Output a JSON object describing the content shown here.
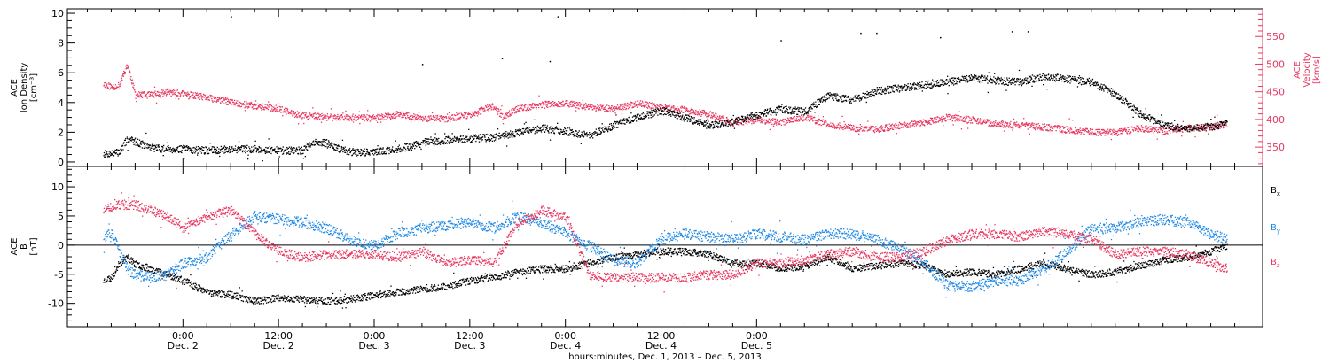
{
  "chart_data": [
    {
      "type": "scatter",
      "panel": "top",
      "ylabel_left": [
        "ACE",
        "Ion Density",
        "[cm⁻³]"
      ],
      "ylabel_right": [
        "ACE",
        "Velocity",
        "[km/s]"
      ],
      "ylim_left": [
        -0.3,
        10.3
      ],
      "yticks_left": [
        0,
        2,
        4,
        6,
        8,
        10
      ],
      "ylim_right": [
        315,
        600
      ],
      "yticks_right": [
        350,
        400,
        450,
        500,
        550
      ],
      "series": [
        {
          "name": "Ion Density",
          "axis": "left",
          "color": "#000000",
          "x": [
            -10,
            -9,
            -8,
            -7,
            -6,
            -4,
            -2,
            0,
            3,
            6,
            9,
            12,
            15,
            16,
            17,
            18,
            19,
            21,
            24,
            27,
            30,
            33,
            36,
            39,
            42,
            45,
            48,
            51,
            54,
            57,
            60,
            63,
            66,
            69,
            72,
            75,
            78,
            81,
            84,
            87,
            90,
            93,
            96,
            99,
            102,
            105,
            108,
            111,
            114,
            117,
            120,
            123,
            126,
            129,
            131
          ],
          "y": [
            0.6,
            0.6,
            0.7,
            1.6,
            1.4,
            1.0,
            0.9,
            0.9,
            0.8,
            0.9,
            0.9,
            0.8,
            0.8,
            1.2,
            1.4,
            1.3,
            1.0,
            0.7,
            0.7,
            0.9,
            1.3,
            1.5,
            1.6,
            1.7,
            2.0,
            2.3,
            2.1,
            1.8,
            2.5,
            3.0,
            3.5,
            3.0,
            2.5,
            2.7,
            3.2,
            3.6,
            3.4,
            4.5,
            4.2,
            4.8,
            5.0,
            5.2,
            5.4,
            5.7,
            5.5,
            5.4,
            5.8,
            5.6,
            5.4,
            4.6,
            3.3,
            2.5,
            2.3,
            2.4,
            2.6
          ],
          "outliers_x": [
            6,
            30,
            40,
            46,
            47,
            75,
            85,
            87,
            92,
            95,
            104,
            106
          ],
          "outliers_y": [
            9.8,
            6.6,
            7.0,
            6.8,
            9.8,
            8.2,
            8.7,
            8.7,
            10.2,
            8.4,
            8.8,
            8.8
          ]
        },
        {
          "name": "Velocity",
          "axis": "right",
          "color": "#e8375f",
          "x": [
            -10,
            -9,
            -8,
            -7.5,
            -7,
            -6,
            -4,
            -2,
            0,
            3,
            6,
            9,
            12,
            14,
            15,
            18,
            21,
            24,
            27,
            30,
            33,
            36,
            38,
            39,
            40,
            42,
            45,
            48,
            51,
            54,
            57,
            60,
            63,
            66,
            69,
            72,
            75,
            78,
            81,
            84,
            87,
            90,
            93,
            96,
            99,
            102,
            105,
            108,
            111,
            114,
            117,
            120,
            123,
            126,
            129,
            131
          ],
          "y": [
            465,
            460,
            462,
            485,
            500,
            445,
            445,
            450,
            447,
            440,
            432,
            425,
            420,
            410,
            408,
            405,
            405,
            403,
            410,
            403,
            402,
            410,
            420,
            425,
            405,
            420,
            428,
            430,
            423,
            420,
            430,
            422,
            418,
            410,
            395,
            400,
            395,
            405,
            392,
            385,
            383,
            390,
            395,
            405,
            400,
            393,
            390,
            387,
            382,
            378,
            377,
            385,
            380,
            385,
            388,
            392
          ]
        }
      ]
    },
    {
      "type": "scatter",
      "panel": "bottom",
      "ylabel_left": [
        "ACE",
        "B",
        "[nT]"
      ],
      "ylim": [
        -14,
        13.5
      ],
      "yticks": [
        -10,
        -5,
        0,
        5,
        10
      ],
      "zero_line": true,
      "legend_placement": "right",
      "series": [
        {
          "name": "B_x",
          "label_main": "B",
          "label_sub": "x",
          "color": "#000000",
          "x": [
            -10,
            -9,
            -8,
            -7,
            -6,
            -4,
            -2,
            0,
            3,
            6,
            9,
            12,
            15,
            18,
            21,
            24,
            27,
            30,
            33,
            36,
            39,
            42,
            45,
            48,
            51,
            54,
            57,
            60,
            63,
            66,
            69,
            72,
            75,
            78,
            81,
            84,
            87,
            90,
            93,
            96,
            99,
            102,
            105,
            108,
            111,
            114,
            117,
            120,
            123,
            126,
            129,
            131
          ],
          "y": [
            -6,
            -5.5,
            -3,
            -2,
            -3.2,
            -4,
            -5,
            -6,
            -8,
            -8.5,
            -9.5,
            -9,
            -9.2,
            -9.5,
            -9.2,
            -8.5,
            -8,
            -7.5,
            -7,
            -6,
            -5.5,
            -4.5,
            -4,
            -4,
            -3,
            -2,
            -1.5,
            -1,
            -1,
            -1.5,
            -3,
            -3,
            -4,
            -3.5,
            -2,
            -4,
            -3.5,
            -3,
            -3.5,
            -5,
            -4.5,
            -5,
            -4,
            -3,
            -4,
            -5,
            -4.5,
            -3.5,
            -2.5,
            -2,
            -1,
            0
          ]
        },
        {
          "name": "B_y",
          "label_main": "B",
          "label_sub": "y",
          "color": "#1e88e5",
          "x": [
            -10,
            -9,
            -8,
            -7,
            -6,
            -4,
            -2,
            0,
            3,
            6,
            9,
            12,
            15,
            18,
            21,
            24,
            27,
            30,
            33,
            36,
            39,
            42,
            45,
            48,
            51,
            54,
            57,
            60,
            63,
            66,
            69,
            72,
            75,
            78,
            81,
            84,
            87,
            90,
            93,
            96,
            99,
            102,
            105,
            108,
            111,
            114,
            117,
            120,
            123,
            126,
            129,
            131
          ],
          "y": [
            1.5,
            2,
            -1,
            -4,
            -5,
            -5.5,
            -5,
            -3,
            -2,
            2,
            5,
            4.5,
            4,
            3,
            1,
            0,
            2,
            3,
            3.5,
            4,
            3,
            5,
            4,
            2,
            0,
            -2.5,
            -3,
            1,
            2,
            1.5,
            1,
            2,
            1.5,
            1,
            2,
            2,
            1,
            -0.5,
            -3,
            -7,
            -7,
            -6,
            -6,
            -4,
            -1,
            3,
            3,
            4,
            4.5,
            4,
            2,
            1
          ]
        },
        {
          "name": "B_z",
          "label_main": "B",
          "label_sub": "z",
          "color": "#e8375f",
          "x": [
            -10,
            -9,
            -8,
            -7,
            -6,
            -4,
            -2,
            0,
            3,
            6,
            9,
            12,
            15,
            18,
            21,
            24,
            27,
            30,
            33,
            36,
            39,
            42,
            45,
            48,
            51,
            54,
            57,
            60,
            63,
            66,
            69,
            72,
            75,
            78,
            81,
            84,
            87,
            90,
            93,
            96,
            99,
            102,
            105,
            108,
            111,
            114,
            117,
            120,
            123,
            126,
            129,
            131
          ],
          "y": [
            6,
            6.5,
            7,
            7,
            7,
            6,
            5,
            3,
            5,
            6,
            2,
            -1,
            -2,
            -1.5,
            -1.5,
            -1.5,
            -2,
            -1,
            -3,
            -2.5,
            -3,
            4,
            6,
            5,
            -5,
            -5.5,
            -5.5,
            -5.5,
            -5.5,
            -5,
            -5,
            -3,
            -3,
            -2.5,
            -1.5,
            -1,
            -2,
            -2,
            -1,
            1,
            2,
            2,
            1.5,
            2.5,
            2,
            1,
            -1.5,
            -1,
            -1,
            -1.5,
            -3,
            -4
          ]
        }
      ]
    }
  ],
  "x_axis": {
    "xlim_hours": [
      -14.5,
      135.5
    ],
    "ticks": [
      {
        "time": "0:00",
        "day": "Dec. 2"
      },
      {
        "time": "12:00",
        "day": "Dec. 2"
      },
      {
        "time": "0:00",
        "day": "Dec. 3"
      },
      {
        "time": "12:00",
        "day": "Dec. 3"
      },
      {
        "time": "0:00",
        "day": "Dec. 4"
      },
      {
        "time": "12:00",
        "day": "Dec. 4"
      },
      {
        "time": "0:00",
        "day": "Dec. 5"
      }
    ],
    "tick_hours": [
      0,
      12,
      24,
      36,
      48,
      60,
      72
    ],
    "title": "hours:minutes, Dec.  1, 2013 – Dec.  5, 2013"
  }
}
